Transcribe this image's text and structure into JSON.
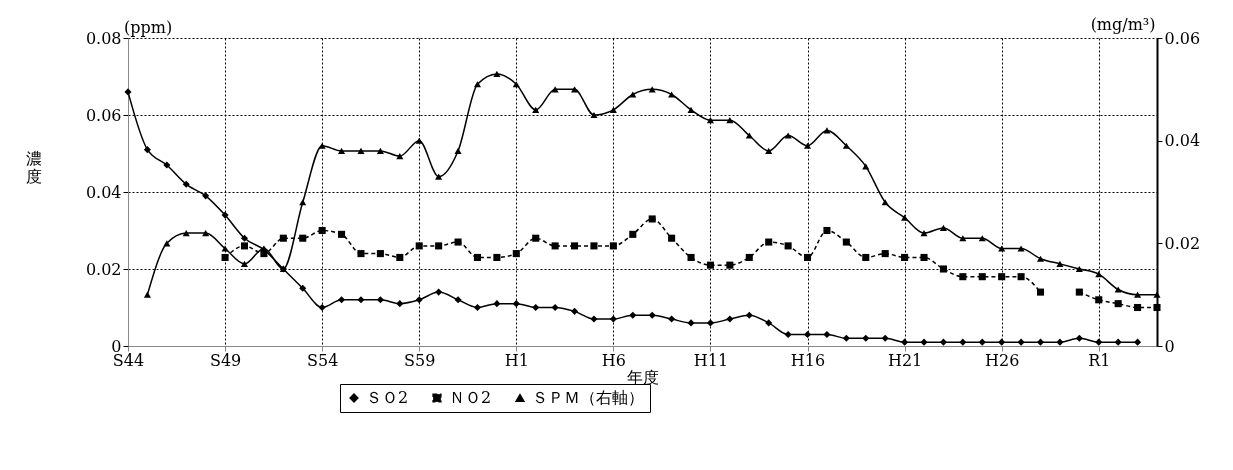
{
  "chart_data": {
    "type": "line",
    "categories": [
      "S44",
      null,
      null,
      null,
      null,
      "S49",
      null,
      null,
      null,
      null,
      "S54",
      null,
      null,
      null,
      null,
      "S59",
      null,
      null,
      null,
      null,
      "H1",
      null,
      null,
      null,
      null,
      "H6",
      null,
      null,
      null,
      null,
      "H11",
      null,
      null,
      null,
      null,
      "H16",
      null,
      null,
      null,
      null,
      "H21",
      null,
      null,
      null,
      null,
      "H26",
      null,
      null,
      null,
      null,
      "R1",
      null,
      null,
      null
    ],
    "series": [
      {
        "name": "ＳＯ2",
        "color": "#000000",
        "marker": "diamond",
        "line_style": "solid",
        "values": [
          0.066,
          0.051,
          0.047,
          0.042,
          0.039,
          0.034,
          0.028,
          0.025,
          0.02,
          0.015,
          0.01,
          0.012,
          0.012,
          0.012,
          0.011,
          0.012,
          0.014,
          0.012,
          0.01,
          0.011,
          0.011,
          0.01,
          0.01,
          0.009,
          0.007,
          0.007,
          0.008,
          0.008,
          0.007,
          0.006,
          0.006,
          0.007,
          0.008,
          0.006,
          0.003,
          0.003,
          0.003,
          0.002,
          0.002,
          0.002,
          0.001,
          0.001,
          0.001,
          0.001,
          0.001,
          0.001,
          0.001,
          0.001,
          0.001,
          0.002,
          0.001,
          0.001,
          0.001,
          null
        ]
      },
      {
        "name": "ＮＯ2",
        "color": "#000000",
        "marker": "square",
        "line_style": "dashed",
        "values": [
          null,
          null,
          null,
          null,
          null,
          0.023,
          0.026,
          0.024,
          0.028,
          0.028,
          0.03,
          0.029,
          0.024,
          0.024,
          0.023,
          0.026,
          0.026,
          0.027,
          0.023,
          0.023,
          0.024,
          0.028,
          0.026,
          0.026,
          0.026,
          0.026,
          0.029,
          0.033,
          0.028,
          0.023,
          0.021,
          0.021,
          0.023,
          0.027,
          0.026,
          0.023,
          0.03,
          0.027,
          0.023,
          0.024,
          0.023,
          0.023,
          0.02,
          0.018,
          0.018,
          0.018,
          0.018,
          0.014,
          null,
          0.014,
          0.012,
          0.011,
          0.01,
          0.01
        ]
      },
      {
        "name": "ＳＰＭ（右軸）",
        "color": "#000000",
        "marker": "triangle",
        "line_style": "solid",
        "axis": "y2",
        "values": [
          null,
          0.01,
          0.02,
          0.022,
          0.022,
          0.019,
          0.016,
          0.019,
          0.015,
          0.028,
          0.039,
          0.038,
          0.038,
          0.038,
          0.037,
          0.04,
          0.033,
          0.038,
          0.051,
          0.053,
          0.051,
          0.046,
          0.05,
          0.05,
          0.045,
          0.046,
          0.049,
          0.05,
          0.049,
          0.046,
          0.044,
          0.044,
          0.041,
          0.038,
          0.041,
          0.039,
          0.042,
          0.039,
          0.035,
          0.028,
          0.025,
          0.022,
          0.023,
          0.021,
          0.021,
          0.019,
          0.019,
          0.017,
          0.016,
          0.015,
          0.014,
          0.011,
          0.01,
          0.01
        ]
      }
    ],
    "xlabel": "年度",
    "ylabel": "濃度",
    "y2label": "(mg/m³)",
    "annotations": [
      "(ppm)"
    ],
    "ylim": [
      0,
      0.08
    ],
    "yticks": [
      0,
      0.02,
      0.04,
      0.06,
      0.08
    ],
    "y2lim": [
      0,
      0.06
    ],
    "y2ticks": [
      0,
      0.02,
      0.04,
      0.06
    ],
    "grid": true,
    "legend": "bottom"
  }
}
